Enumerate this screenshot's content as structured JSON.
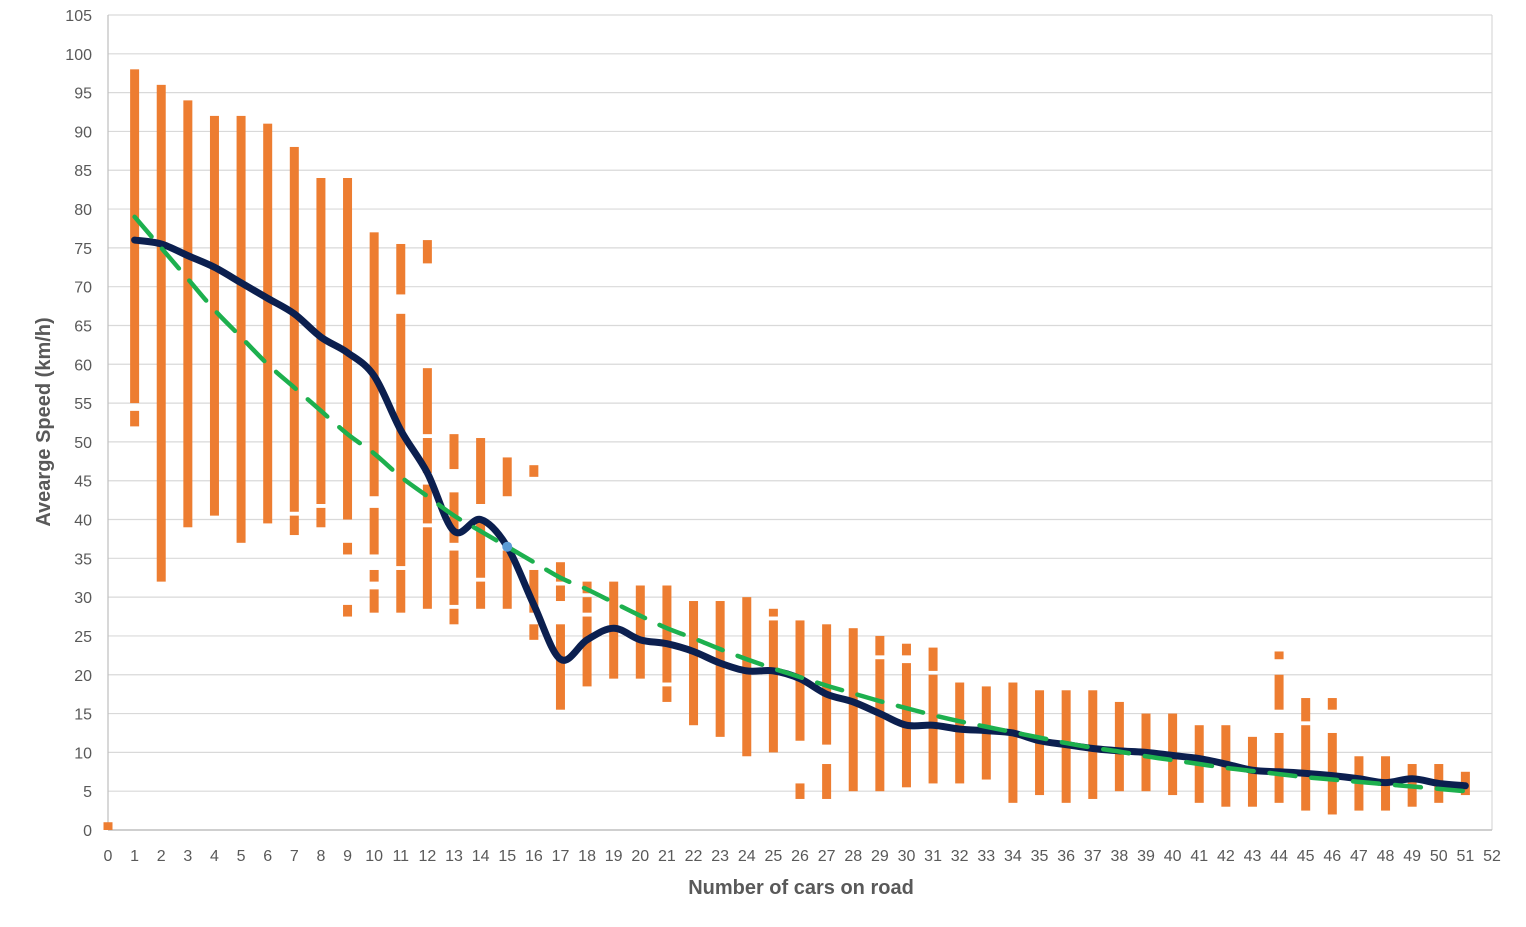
{
  "chart_data": {
    "type": "scatter",
    "title": "",
    "xlabel": "Number of cars on road",
    "ylabel": "Avearge Speed (km/h)",
    "xlim": [
      0,
      52
    ],
    "ylim": [
      0,
      105
    ],
    "x_tick_step": 1,
    "y_tick_step": 5,
    "grid": "horizontal",
    "legend": "none",
    "colors": {
      "samples": "#ED7D31",
      "mean_line": "#0B1F4F",
      "trend_line": "#1DB04E",
      "marker": "#5B9BD5",
      "grid": "#D9D9D9",
      "axis": "#BFBFBF"
    },
    "series": [
      {
        "type": "range-segments",
        "segments": [
          {
            "x": 0,
            "ranges": [
              [
                0,
                1
              ]
            ]
          },
          {
            "x": 1,
            "ranges": [
              [
                52,
                54
              ],
              [
                55,
                98
              ]
            ]
          },
          {
            "x": 2,
            "ranges": [
              [
                32,
                96
              ]
            ]
          },
          {
            "x": 3,
            "ranges": [
              [
                39,
                94
              ]
            ]
          },
          {
            "x": 4,
            "ranges": [
              [
                40.5,
                92
              ]
            ]
          },
          {
            "x": 5,
            "ranges": [
              [
                37,
                92
              ]
            ]
          },
          {
            "x": 6,
            "ranges": [
              [
                39.5,
                91
              ]
            ]
          },
          {
            "x": 7,
            "ranges": [
              [
                38,
                40.5
              ],
              [
                41,
                88
              ]
            ]
          },
          {
            "x": 8,
            "ranges": [
              [
                39,
                41.5
              ],
              [
                42,
                84
              ]
            ]
          },
          {
            "x": 9,
            "ranges": [
              [
                27.5,
                29
              ],
              [
                35.5,
                37
              ],
              [
                40,
                84
              ]
            ]
          },
          {
            "x": 10,
            "ranges": [
              [
                28,
                31
              ],
              [
                32,
                33.5
              ],
              [
                35.5,
                41.5
              ],
              [
                43,
                77
              ]
            ]
          },
          {
            "x": 11,
            "ranges": [
              [
                28,
                33.5
              ],
              [
                34,
                66.5
              ],
              [
                69,
                75.5
              ]
            ]
          },
          {
            "x": 12,
            "ranges": [
              [
                28.5,
                39
              ],
              [
                39.5,
                44.5
              ],
              [
                46,
                50.5
              ],
              [
                51,
                59.5
              ],
              [
                73,
                76
              ]
            ]
          },
          {
            "x": 13,
            "ranges": [
              [
                26.5,
                28.5
              ],
              [
                29,
                36
              ],
              [
                37,
                43.5
              ],
              [
                46.5,
                51
              ]
            ]
          },
          {
            "x": 14,
            "ranges": [
              [
                28.5,
                32
              ],
              [
                32.5,
                40
              ],
              [
                42,
                50.5
              ]
            ]
          },
          {
            "x": 15,
            "ranges": [
              [
                28.5,
                36
              ],
              [
                43,
                48
              ]
            ]
          },
          {
            "x": 16,
            "ranges": [
              [
                24.5,
                26.5
              ],
              [
                28,
                33.5
              ],
              [
                45.5,
                47
              ]
            ]
          },
          {
            "x": 17,
            "ranges": [
              [
                15.5,
                26.5
              ],
              [
                29.5,
                31.5
              ],
              [
                32,
                34.5
              ]
            ]
          },
          {
            "x": 18,
            "ranges": [
              [
                18.5,
                27.5
              ],
              [
                28,
                30
              ],
              [
                30.5,
                32
              ]
            ]
          },
          {
            "x": 19,
            "ranges": [
              [
                19.5,
                32
              ]
            ]
          },
          {
            "x": 20,
            "ranges": [
              [
                19.5,
                31.5
              ]
            ]
          },
          {
            "x": 21,
            "ranges": [
              [
                16.5,
                18.5
              ],
              [
                19,
                31.5
              ]
            ]
          },
          {
            "x": 22,
            "ranges": [
              [
                13.5,
                29.5
              ]
            ]
          },
          {
            "x": 23,
            "ranges": [
              [
                12,
                29.5
              ]
            ]
          },
          {
            "x": 24,
            "ranges": [
              [
                9.5,
                30
              ]
            ]
          },
          {
            "x": 25,
            "ranges": [
              [
                10,
                27
              ],
              [
                27.5,
                28.5
              ]
            ]
          },
          {
            "x": 26,
            "ranges": [
              [
                4,
                6
              ],
              [
                11.5,
                27
              ]
            ]
          },
          {
            "x": 27,
            "ranges": [
              [
                4,
                8.5
              ],
              [
                11,
                26.5
              ]
            ]
          },
          {
            "x": 28,
            "ranges": [
              [
                5,
                26
              ]
            ]
          },
          {
            "x": 29,
            "ranges": [
              [
                5,
                22
              ],
              [
                22.5,
                25
              ]
            ]
          },
          {
            "x": 30,
            "ranges": [
              [
                5.5,
                21.5
              ],
              [
                22.5,
                24
              ]
            ]
          },
          {
            "x": 31,
            "ranges": [
              [
                6,
                20
              ],
              [
                20.5,
                23.5
              ]
            ]
          },
          {
            "x": 32,
            "ranges": [
              [
                6,
                19
              ]
            ]
          },
          {
            "x": 33,
            "ranges": [
              [
                6.5,
                18.5
              ]
            ]
          },
          {
            "x": 34,
            "ranges": [
              [
                3.5,
                19
              ]
            ]
          },
          {
            "x": 35,
            "ranges": [
              [
                4.5,
                18
              ]
            ]
          },
          {
            "x": 36,
            "ranges": [
              [
                3.5,
                18
              ]
            ]
          },
          {
            "x": 37,
            "ranges": [
              [
                4,
                18
              ]
            ]
          },
          {
            "x": 38,
            "ranges": [
              [
                5,
                16.5
              ]
            ]
          },
          {
            "x": 39,
            "ranges": [
              [
                5,
                15
              ]
            ]
          },
          {
            "x": 40,
            "ranges": [
              [
                4.5,
                15
              ]
            ]
          },
          {
            "x": 41,
            "ranges": [
              [
                3.5,
                13.5
              ]
            ]
          },
          {
            "x": 42,
            "ranges": [
              [
                3,
                13.5
              ]
            ]
          },
          {
            "x": 43,
            "ranges": [
              [
                3,
                12
              ]
            ]
          },
          {
            "x": 44,
            "ranges": [
              [
                3.5,
                12.5
              ],
              [
                15.5,
                20
              ],
              [
                22,
                23
              ]
            ]
          },
          {
            "x": 45,
            "ranges": [
              [
                2.5,
                13.5
              ],
              [
                14,
                17
              ]
            ]
          },
          {
            "x": 46,
            "ranges": [
              [
                2,
                12.5
              ],
              [
                15.5,
                17
              ]
            ]
          },
          {
            "x": 47,
            "ranges": [
              [
                2.5,
                9.5
              ]
            ]
          },
          {
            "x": 48,
            "ranges": [
              [
                2.5,
                9.5
              ]
            ]
          },
          {
            "x": 49,
            "ranges": [
              [
                3,
                8.5
              ]
            ]
          },
          {
            "x": 50,
            "ranges": [
              [
                3.5,
                8.5
              ]
            ]
          },
          {
            "x": 51,
            "ranges": [
              [
                4.5,
                7.5
              ]
            ]
          }
        ]
      },
      {
        "type": "line",
        "x": [
          1,
          2,
          3,
          4,
          5,
          6,
          7,
          8,
          9,
          10,
          11,
          12,
          13,
          14,
          15,
          16,
          17,
          18,
          19,
          20,
          21,
          22,
          23,
          24,
          25,
          26,
          27,
          28,
          29,
          30,
          31,
          32,
          33,
          34,
          35,
          36,
          37,
          38,
          39,
          40,
          41,
          42,
          43,
          44,
          45,
          46,
          47,
          48,
          49,
          50,
          51
        ],
        "y": [
          76,
          75.5,
          74,
          72.5,
          70.5,
          68.5,
          66.5,
          63.5,
          61.5,
          58.5,
          51.5,
          46,
          38.5,
          40,
          36.5,
          29,
          22,
          24.5,
          26,
          24.5,
          24,
          23,
          21.5,
          20.5,
          20.5,
          19.5,
          17.5,
          16.5,
          15,
          13.5,
          13.5,
          13,
          12.8,
          12.5,
          11.5,
          11,
          10.5,
          10.2,
          10,
          9.6,
          9.2,
          8.5,
          7.7,
          7.5,
          7.3,
          7,
          6.6,
          6.1,
          6.6,
          6,
          5.7
        ]
      },
      {
        "type": "trend",
        "x": [
          1,
          2,
          3,
          4,
          5,
          6,
          7,
          8,
          9,
          10,
          11,
          12,
          13,
          14,
          15,
          16,
          17,
          18,
          19,
          20,
          21,
          22,
          23,
          24,
          25,
          26,
          27,
          28,
          29,
          30,
          31,
          32,
          33,
          34,
          35,
          36,
          37,
          38,
          39,
          40,
          41,
          42,
          43,
          44,
          45,
          46,
          47,
          48,
          49,
          50,
          51
        ],
        "y": [
          79,
          75,
          71,
          67,
          63.5,
          60,
          57,
          54,
          51,
          48.5,
          45.5,
          43,
          40.5,
          38.5,
          36.5,
          34.5,
          32.5,
          31,
          29.3,
          27.6,
          26,
          24.7,
          23.3,
          22,
          20.8,
          19.7,
          18.6,
          17.6,
          16.6,
          15.7,
          14.8,
          14,
          13.3,
          12.6,
          11.9,
          11.2,
          10.6,
          10.1,
          9.5,
          9,
          8.5,
          8,
          7.6,
          7.2,
          6.8,
          6.5,
          6.2,
          5.9,
          5.6,
          5.3,
          5
        ]
      }
    ],
    "highlight_point": {
      "x": 15,
      "y": 36.5
    }
  }
}
